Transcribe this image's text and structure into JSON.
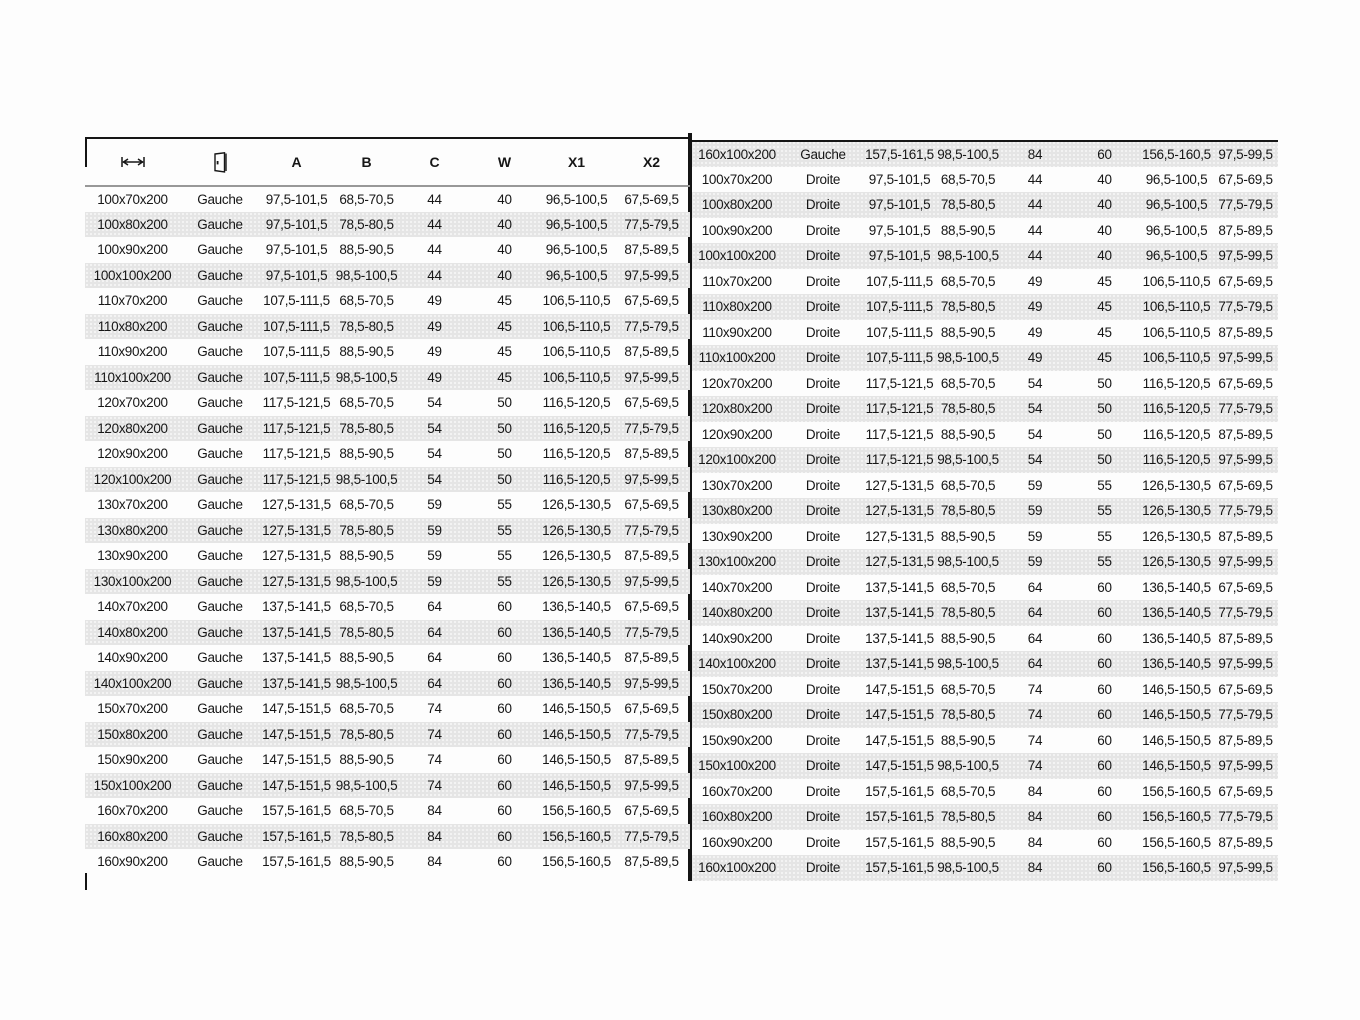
{
  "header": {
    "col_a": "A",
    "col_b": "B",
    "col_c": "C",
    "col_w": "W",
    "col_x1": "X1",
    "col_x2": "X2",
    "width_icon": "width-dimension-icon",
    "door_icon": "door-orientation-icon"
  },
  "columns": [
    "size",
    "side",
    "a",
    "b",
    "c",
    "w",
    "x1",
    "x2"
  ],
  "side_labels": {
    "left": "Gauche",
    "right": "Droite"
  },
  "colors": {
    "stripe": "#e5e5e5",
    "border": "#141414",
    "header_rule": "#989898",
    "text": "#161616"
  },
  "left_rows": [
    [
      "100x70x200",
      "Gauche",
      "97,5-101,5",
      "68,5-70,5",
      "44",
      "40",
      "96,5-100,5",
      "67,5-69,5"
    ],
    [
      "100x80x200",
      "Gauche",
      "97,5-101,5",
      "78,5-80,5",
      "44",
      "40",
      "96,5-100,5",
      "77,5-79,5"
    ],
    [
      "100x90x200",
      "Gauche",
      "97,5-101,5",
      "88,5-90,5",
      "44",
      "40",
      "96,5-100,5",
      "87,5-89,5"
    ],
    [
      "100x100x200",
      "Gauche",
      "97,5-101,5",
      "98,5-100,5",
      "44",
      "40",
      "96,5-100,5",
      "97,5-99,5"
    ],
    [
      "110x70x200",
      "Gauche",
      "107,5-111,5",
      "68,5-70,5",
      "49",
      "45",
      "106,5-110,5",
      "67,5-69,5"
    ],
    [
      "110x80x200",
      "Gauche",
      "107,5-111,5",
      "78,5-80,5",
      "49",
      "45",
      "106,5-110,5",
      "77,5-79,5"
    ],
    [
      "110x90x200",
      "Gauche",
      "107,5-111,5",
      "88,5-90,5",
      "49",
      "45",
      "106,5-110,5",
      "87,5-89,5"
    ],
    [
      "110x100x200",
      "Gauche",
      "107,5-111,5",
      "98,5-100,5",
      "49",
      "45",
      "106,5-110,5",
      "97,5-99,5"
    ],
    [
      "120x70x200",
      "Gauche",
      "117,5-121,5",
      "68,5-70,5",
      "54",
      "50",
      "116,5-120,5",
      "67,5-69,5"
    ],
    [
      "120x80x200",
      "Gauche",
      "117,5-121,5",
      "78,5-80,5",
      "54",
      "50",
      "116,5-120,5",
      "77,5-79,5"
    ],
    [
      "120x90x200",
      "Gauche",
      "117,5-121,5",
      "88,5-90,5",
      "54",
      "50",
      "116,5-120,5",
      "87,5-89,5"
    ],
    [
      "120x100x200",
      "Gauche",
      "117,5-121,5",
      "98,5-100,5",
      "54",
      "50",
      "116,5-120,5",
      "97,5-99,5"
    ],
    [
      "130x70x200",
      "Gauche",
      "127,5-131,5",
      "68,5-70,5",
      "59",
      "55",
      "126,5-130,5",
      "67,5-69,5"
    ],
    [
      "130x80x200",
      "Gauche",
      "127,5-131,5",
      "78,5-80,5",
      "59",
      "55",
      "126,5-130,5",
      "77,5-79,5"
    ],
    [
      "130x90x200",
      "Gauche",
      "127,5-131,5",
      "88,5-90,5",
      "59",
      "55",
      "126,5-130,5",
      "87,5-89,5"
    ],
    [
      "130x100x200",
      "Gauche",
      "127,5-131,5",
      "98,5-100,5",
      "59",
      "55",
      "126,5-130,5",
      "97,5-99,5"
    ],
    [
      "140x70x200",
      "Gauche",
      "137,5-141,5",
      "68,5-70,5",
      "64",
      "60",
      "136,5-140,5",
      "67,5-69,5"
    ],
    [
      "140x80x200",
      "Gauche",
      "137,5-141,5",
      "78,5-80,5",
      "64",
      "60",
      "136,5-140,5",
      "77,5-79,5"
    ],
    [
      "140x90x200",
      "Gauche",
      "137,5-141,5",
      "88,5-90,5",
      "64",
      "60",
      "136,5-140,5",
      "87,5-89,5"
    ],
    [
      "140x100x200",
      "Gauche",
      "137,5-141,5",
      "98,5-100,5",
      "64",
      "60",
      "136,5-140,5",
      "97,5-99,5"
    ],
    [
      "150x70x200",
      "Gauche",
      "147,5-151,5",
      "68,5-70,5",
      "74",
      "60",
      "146,5-150,5",
      "67,5-69,5"
    ],
    [
      "150x80x200",
      "Gauche",
      "147,5-151,5",
      "78,5-80,5",
      "74",
      "60",
      "146,5-150,5",
      "77,5-79,5"
    ],
    [
      "150x90x200",
      "Gauche",
      "147,5-151,5",
      "88,5-90,5",
      "74",
      "60",
      "146,5-150,5",
      "87,5-89,5"
    ],
    [
      "150x100x200",
      "Gauche",
      "147,5-151,5",
      "98,5-100,5",
      "74",
      "60",
      "146,5-150,5",
      "97,5-99,5"
    ],
    [
      "160x70x200",
      "Gauche",
      "157,5-161,5",
      "68,5-70,5",
      "84",
      "60",
      "156,5-160,5",
      "67,5-69,5"
    ],
    [
      "160x80x200",
      "Gauche",
      "157,5-161,5",
      "78,5-80,5",
      "84",
      "60",
      "156,5-160,5",
      "77,5-79,5"
    ],
    [
      "160x90x200",
      "Gauche",
      "157,5-161,5",
      "88,5-90,5",
      "84",
      "60",
      "156,5-160,5",
      "87,5-89,5"
    ]
  ],
  "right_rows": [
    [
      "160x100x200",
      "Gauche",
      "157,5-161,5",
      "98,5-100,5",
      "84",
      "60",
      "156,5-160,5",
      "97,5-99,5"
    ],
    [
      "100x70x200",
      "Droite",
      "97,5-101,5",
      "68,5-70,5",
      "44",
      "40",
      "96,5-100,5",
      "67,5-69,5"
    ],
    [
      "100x80x200",
      "Droite",
      "97,5-101,5",
      "78,5-80,5",
      "44",
      "40",
      "96,5-100,5",
      "77,5-79,5"
    ],
    [
      "100x90x200",
      "Droite",
      "97,5-101,5",
      "88,5-90,5",
      "44",
      "40",
      "96,5-100,5",
      "87,5-89,5"
    ],
    [
      "100x100x200",
      "Droite",
      "97,5-101,5",
      "98,5-100,5",
      "44",
      "40",
      "96,5-100,5",
      "97,5-99,5"
    ],
    [
      "110x70x200",
      "Droite",
      "107,5-111,5",
      "68,5-70,5",
      "49",
      "45",
      "106,5-110,5",
      "67,5-69,5"
    ],
    [
      "110x80x200",
      "Droite",
      "107,5-111,5",
      "78,5-80,5",
      "49",
      "45",
      "106,5-110,5",
      "77,5-79,5"
    ],
    [
      "110x90x200",
      "Droite",
      "107,5-111,5",
      "88,5-90,5",
      "49",
      "45",
      "106,5-110,5",
      "87,5-89,5"
    ],
    [
      "110x100x200",
      "Droite",
      "107,5-111,5",
      "98,5-100,5",
      "49",
      "45",
      "106,5-110,5",
      "97,5-99,5"
    ],
    [
      "120x70x200",
      "Droite",
      "117,5-121,5",
      "68,5-70,5",
      "54",
      "50",
      "116,5-120,5",
      "67,5-69,5"
    ],
    [
      "120x80x200",
      "Droite",
      "117,5-121,5",
      "78,5-80,5",
      "54",
      "50",
      "116,5-120,5",
      "77,5-79,5"
    ],
    [
      "120x90x200",
      "Droite",
      "117,5-121,5",
      "88,5-90,5",
      "54",
      "50",
      "116,5-120,5",
      "87,5-89,5"
    ],
    [
      "120x100x200",
      "Droite",
      "117,5-121,5",
      "98,5-100,5",
      "54",
      "50",
      "116,5-120,5",
      "97,5-99,5"
    ],
    [
      "130x70x200",
      "Droite",
      "127,5-131,5",
      "68,5-70,5",
      "59",
      "55",
      "126,5-130,5",
      "67,5-69,5"
    ],
    [
      "130x80x200",
      "Droite",
      "127,5-131,5",
      "78,5-80,5",
      "59",
      "55",
      "126,5-130,5",
      "77,5-79,5"
    ],
    [
      "130x90x200",
      "Droite",
      "127,5-131,5",
      "88,5-90,5",
      "59",
      "55",
      "126,5-130,5",
      "87,5-89,5"
    ],
    [
      "130x100x200",
      "Droite",
      "127,5-131,5",
      "98,5-100,5",
      "59",
      "55",
      "126,5-130,5",
      "97,5-99,5"
    ],
    [
      "140x70x200",
      "Droite",
      "137,5-141,5",
      "68,5-70,5",
      "64",
      "60",
      "136,5-140,5",
      "67,5-69,5"
    ],
    [
      "140x80x200",
      "Droite",
      "137,5-141,5",
      "78,5-80,5",
      "64",
      "60",
      "136,5-140,5",
      "77,5-79,5"
    ],
    [
      "140x90x200",
      "Droite",
      "137,5-141,5",
      "88,5-90,5",
      "64",
      "60",
      "136,5-140,5",
      "87,5-89,5"
    ],
    [
      "140x100x200",
      "Droite",
      "137,5-141,5",
      "98,5-100,5",
      "64",
      "60",
      "136,5-140,5",
      "97,5-99,5"
    ],
    [
      "150x70x200",
      "Droite",
      "147,5-151,5",
      "68,5-70,5",
      "74",
      "60",
      "146,5-150,5",
      "67,5-69,5"
    ],
    [
      "150x80x200",
      "Droite",
      "147,5-151,5",
      "78,5-80,5",
      "74",
      "60",
      "146,5-150,5",
      "77,5-79,5"
    ],
    [
      "150x90x200",
      "Droite",
      "147,5-151,5",
      "88,5-90,5",
      "74",
      "60",
      "146,5-150,5",
      "87,5-89,5"
    ],
    [
      "150x100x200",
      "Droite",
      "147,5-151,5",
      "98,5-100,5",
      "74",
      "60",
      "146,5-150,5",
      "97,5-99,5"
    ],
    [
      "160x70x200",
      "Droite",
      "157,5-161,5",
      "68,5-70,5",
      "84",
      "60",
      "156,5-160,5",
      "67,5-69,5"
    ],
    [
      "160x80x200",
      "Droite",
      "157,5-161,5",
      "78,5-80,5",
      "84",
      "60",
      "156,5-160,5",
      "77,5-79,5"
    ],
    [
      "160x90x200",
      "Droite",
      "157,5-161,5",
      "88,5-90,5",
      "84",
      "60",
      "156,5-160,5",
      "87,5-89,5"
    ],
    [
      "160x100x200",
      "Droite",
      "157,5-161,5",
      "98,5-100,5",
      "84",
      "60",
      "156,5-160,5",
      "97,5-99,5"
    ]
  ]
}
